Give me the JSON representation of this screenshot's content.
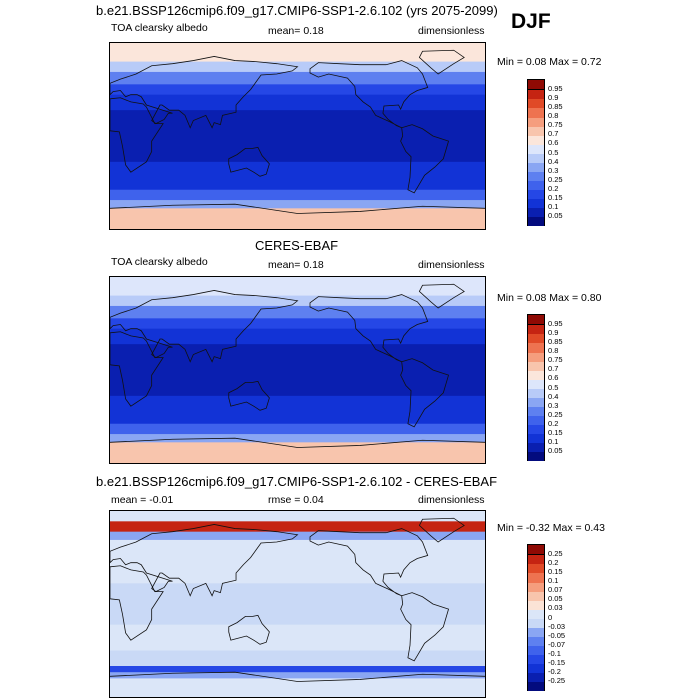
{
  "chart_data": [
    {
      "type": "heatmap",
      "title": "b.e21.BSSP126cmip6.f09_g17.CMIP6-SSP1-2.6.102 (yrs 2075-2099)",
      "season": "DJF",
      "left_label": "TOA clearsky albedo",
      "center_label": "mean=   0.18",
      "right_label": "dimensionless",
      "minmax": "Min =   0.08 Max =   0.72",
      "colorbar_levels": [
        "0.05",
        "0.1",
        "0.15",
        "0.2",
        "0.25",
        "0.3",
        "0.4",
        "0.5",
        "0.6",
        "0.7",
        "0.75",
        "0.8",
        "0.85",
        "0.9",
        "0.95"
      ],
      "colorbar_colors": [
        "#030b7e",
        "#0a1fb0",
        "#1233d6",
        "#2547e6",
        "#3f62ec",
        "#5e80f0",
        "#8aa6f3",
        "#b8cbf8",
        "#dde6fb",
        "#fbe6db",
        "#f8c5ad",
        "#f59e7e",
        "#ee7350",
        "#e04a27",
        "#c52412",
        "#8f0a04"
      ],
      "bands": [
        {
          "lat_from": 90,
          "lat_to": 72,
          "value": 0.65
        },
        {
          "lat_from": 72,
          "lat_to": 62,
          "value": 0.45
        },
        {
          "lat_from": 62,
          "lat_to": 50,
          "value": 0.25
        },
        {
          "lat_from": 50,
          "lat_to": 40,
          "value": 0.18
        },
        {
          "lat_from": 40,
          "lat_to": 25,
          "value": 0.12
        },
        {
          "lat_from": 25,
          "lat_to": -25,
          "value": 0.08
        },
        {
          "lat_from": -25,
          "lat_to": -40,
          "value": 0.1
        },
        {
          "lat_from": -40,
          "lat_to": -52,
          "value": 0.14
        },
        {
          "lat_from": -52,
          "lat_to": -62,
          "value": 0.2
        },
        {
          "lat_from": -62,
          "lat_to": -70,
          "value": 0.3
        },
        {
          "lat_from": -70,
          "lat_to": -90,
          "value": 0.72
        }
      ]
    },
    {
      "type": "heatmap",
      "title": "CERES-EBAF",
      "left_label": "TOA clearsky albedo",
      "center_label": "mean=   0.18",
      "right_label": "dimensionless",
      "minmax": "Min =   0.08 Max =   0.80",
      "colorbar_levels": [
        "0.05",
        "0.1",
        "0.15",
        "0.2",
        "0.25",
        "0.3",
        "0.4",
        "0.5",
        "0.6",
        "0.7",
        "0.75",
        "0.8",
        "0.85",
        "0.9",
        "0.95"
      ],
      "colorbar_colors": [
        "#030b7e",
        "#0a1fb0",
        "#1233d6",
        "#2547e6",
        "#3f62ec",
        "#5e80f0",
        "#8aa6f3",
        "#b8cbf8",
        "#dde6fb",
        "#fbe6db",
        "#f8c5ad",
        "#f59e7e",
        "#ee7350",
        "#e04a27",
        "#c52412",
        "#8f0a04"
      ],
      "bands": [
        {
          "lat_from": 90,
          "lat_to": 72,
          "value": 0.55
        },
        {
          "lat_from": 72,
          "lat_to": 62,
          "value": 0.42
        },
        {
          "lat_from": 62,
          "lat_to": 50,
          "value": 0.25
        },
        {
          "lat_from": 50,
          "lat_to": 40,
          "value": 0.18
        },
        {
          "lat_from": 40,
          "lat_to": 25,
          "value": 0.12
        },
        {
          "lat_from": 25,
          "lat_to": -25,
          "value": 0.08
        },
        {
          "lat_from": -25,
          "lat_to": -40,
          "value": 0.1
        },
        {
          "lat_from": -40,
          "lat_to": -52,
          "value": 0.14
        },
        {
          "lat_from": -52,
          "lat_to": -62,
          "value": 0.2
        },
        {
          "lat_from": -62,
          "lat_to": -70,
          "value": 0.3
        },
        {
          "lat_from": -70,
          "lat_to": -90,
          "value": 0.72
        }
      ]
    },
    {
      "type": "heatmap",
      "title": "b.e21.BSSP126cmip6.f09_g17.CMIP6-SSP1-2.6.102 - CERES-EBAF",
      "left_label": "mean =  -0.01",
      "center_label": "rmse =   0.04",
      "right_label": "dimensionless",
      "minmax": "Min =  -0.32 Max =   0.43",
      "colorbar_levels": [
        "-0.25",
        "-0.2",
        "-0.15",
        "-0.1",
        "-0.07",
        "-0.05",
        "-0.03",
        "0",
        "0.03",
        "0.05",
        "0.07",
        "0.1",
        "0.15",
        "0.2",
        "0.25"
      ],
      "colorbar_colors": [
        "#030b7e",
        "#0a1fb0",
        "#1233d6",
        "#2547e6",
        "#3f62ec",
        "#5e80f0",
        "#8aa6f3",
        "#c9d9f6",
        "#dbe6f8",
        "#fbe3d6",
        "#f8c5ad",
        "#f59e7e",
        "#ee7350",
        "#e04a27",
        "#c52412",
        "#8f0a04"
      ],
      "bands": [
        {
          "lat_from": 90,
          "lat_to": 80,
          "value": 0.0
        },
        {
          "lat_from": 80,
          "lat_to": 70,
          "value": 0.2
        },
        {
          "lat_from": 70,
          "lat_to": 62,
          "value": -0.05
        },
        {
          "lat_from": 62,
          "lat_to": 40,
          "value": 0.01
        },
        {
          "lat_from": 40,
          "lat_to": 20,
          "value": 0.02
        },
        {
          "lat_from": 20,
          "lat_to": -20,
          "value": -0.01
        },
        {
          "lat_from": -20,
          "lat_to": -45,
          "value": 0.02
        },
        {
          "lat_from": -45,
          "lat_to": -60,
          "value": -0.01
        },
        {
          "lat_from": -60,
          "lat_to": -66,
          "value": -0.15
        },
        {
          "lat_from": -66,
          "lat_to": -72,
          "value": -0.05
        },
        {
          "lat_from": -72,
          "lat_to": -90,
          "value": 0.02
        }
      ]
    }
  ]
}
